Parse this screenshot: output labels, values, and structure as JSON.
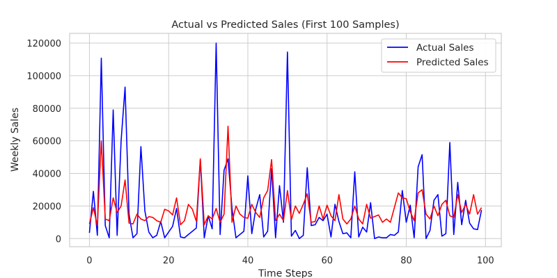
{
  "chart_data": {
    "type": "line",
    "title": "Actual vs Predicted Sales (First 100 Samples)",
    "xlabel": "Time Steps",
    "ylabel": "Weekly Sales",
    "xlim": [
      -5,
      104
    ],
    "ylim": [
      -5000,
      126000
    ],
    "xticks": [
      0,
      20,
      40,
      60,
      80,
      100
    ],
    "yticks": [
      0,
      20000,
      40000,
      60000,
      80000,
      100000,
      120000
    ],
    "grid": true,
    "legend_position": "top-right",
    "series": [
      {
        "name": "Actual Sales",
        "color": "#0000ff",
        "values": [
          3500,
          29000,
          2000,
          110800,
          8000,
          500,
          79000,
          2000,
          60000,
          93000,
          15000,
          500,
          3000,
          56500,
          17000,
          4000,
          500,
          2000,
          10500,
          500,
          4000,
          7500,
          18500,
          1000,
          500,
          2500,
          4500,
          6500,
          48500,
          500,
          14000,
          6000,
          120000,
          2500,
          42000,
          49000,
          18500,
          500,
          2500,
          4500,
          38500,
          3000,
          18000,
          27000,
          1000,
          4500,
          43000,
          500,
          32500,
          10000,
          114500,
          1500,
          5000,
          0,
          2000,
          43500,
          8000,
          8500,
          13000,
          11000,
          15000,
          1000,
          21000,
          10500,
          3000,
          3500,
          500,
          41000,
          1000,
          7000,
          4000,
          22000,
          0,
          1000,
          500,
          500,
          2500,
          2000,
          4000,
          29500,
          10000,
          20500,
          500,
          44000,
          51500,
          0,
          5000,
          23500,
          27000,
          1500,
          3000,
          59000,
          2500,
          34500,
          8500,
          23500,
          9500,
          6000,
          5500,
          17500
        ]
      },
      {
        "name": "Predicted Sales",
        "color": "#ff0000",
        "values": [
          9000,
          19000,
          8000,
          60000,
          12000,
          11000,
          25000,
          16000,
          20000,
          36000,
          9500,
          9000,
          15000,
          12000,
          11000,
          13500,
          13000,
          11000,
          10000,
          18000,
          17000,
          14500,
          25000,
          8500,
          11000,
          21000,
          18000,
          10500,
          49000,
          8500,
          14000,
          12000,
          18500,
          10000,
          15000,
          69000,
          10000,
          20000,
          15000,
          13000,
          12500,
          21000,
          16000,
          13000,
          25000,
          29500,
          48500,
          11000,
          15000,
          11000,
          29500,
          11500,
          20000,
          15500,
          21000,
          27500,
          10000,
          10500,
          20000,
          12000,
          20500,
          14000,
          11000,
          27000,
          12000,
          9000,
          12000,
          20000,
          12000,
          9000,
          21000,
          12500,
          13500,
          14500,
          10000,
          12000,
          10000,
          19000,
          28000,
          25000,
          24500,
          16500,
          11000,
          28000,
          30000,
          15000,
          12000,
          20000,
          14000,
          21000,
          23500,
          14000,
          13000,
          27000,
          16000,
          21000,
          15000,
          27000,
          15000,
          19000
        ]
      }
    ]
  }
}
